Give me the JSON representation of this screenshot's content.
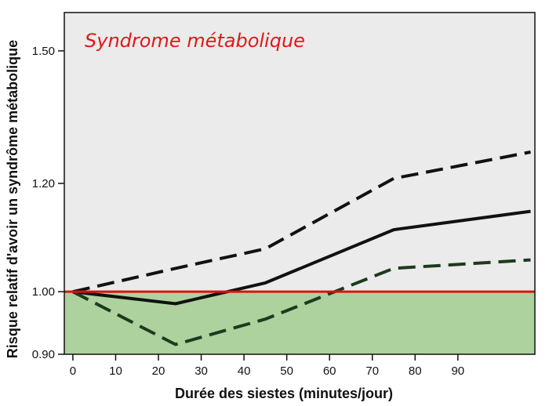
{
  "chart_data": {
    "type": "line",
    "title": "",
    "annotation": "Syndrome métabolique",
    "xlabel": "Durée des siestes (minutes/jour)",
    "ylabel": "Risque relatif d'avoir un syndrôme métabolique",
    "xlim": [
      -2,
      108
    ],
    "ylim": [
      0.9,
      1.6
    ],
    "y_scale": "log",
    "x_ticks": [
      0,
      10,
      20,
      30,
      40,
      50,
      60,
      70,
      80,
      90
    ],
    "x_tick_labels": [
      "0",
      "10",
      "20",
      "30",
      "40",
      "50",
      "60",
      "70",
      "80",
      "90"
    ],
    "y_ticks": [
      0.9,
      1.0,
      1.2,
      1.5
    ],
    "y_tick_labels": [
      "0.90",
      "1.00",
      "1.20",
      "1.50"
    ],
    "reference_line": 1.0,
    "grid": false,
    "series": [
      {
        "style": "solid",
        "color": "#111111",
        "x": [
          0,
          24,
          45,
          75,
          107
        ],
        "y": [
          1.0,
          0.98,
          1.015,
          1.11,
          1.145
        ]
      },
      {
        "style": "dashed",
        "color": "#111111",
        "x": [
          0,
          24,
          45,
          75,
          107
        ],
        "y": [
          1.0,
          1.04,
          1.075,
          1.21,
          1.265
        ]
      },
      {
        "style": "dashed",
        "color": "#1e3a1e",
        "x": [
          0,
          24,
          45,
          75,
          107
        ],
        "y": [
          1.0,
          0.915,
          0.955,
          1.04,
          1.055
        ]
      }
    ],
    "colors": {
      "plot_background": "#ebebeb",
      "below_reference_fill": "#aed29e",
      "reference_line": "#e01010",
      "annotation": "#e01818"
    }
  }
}
